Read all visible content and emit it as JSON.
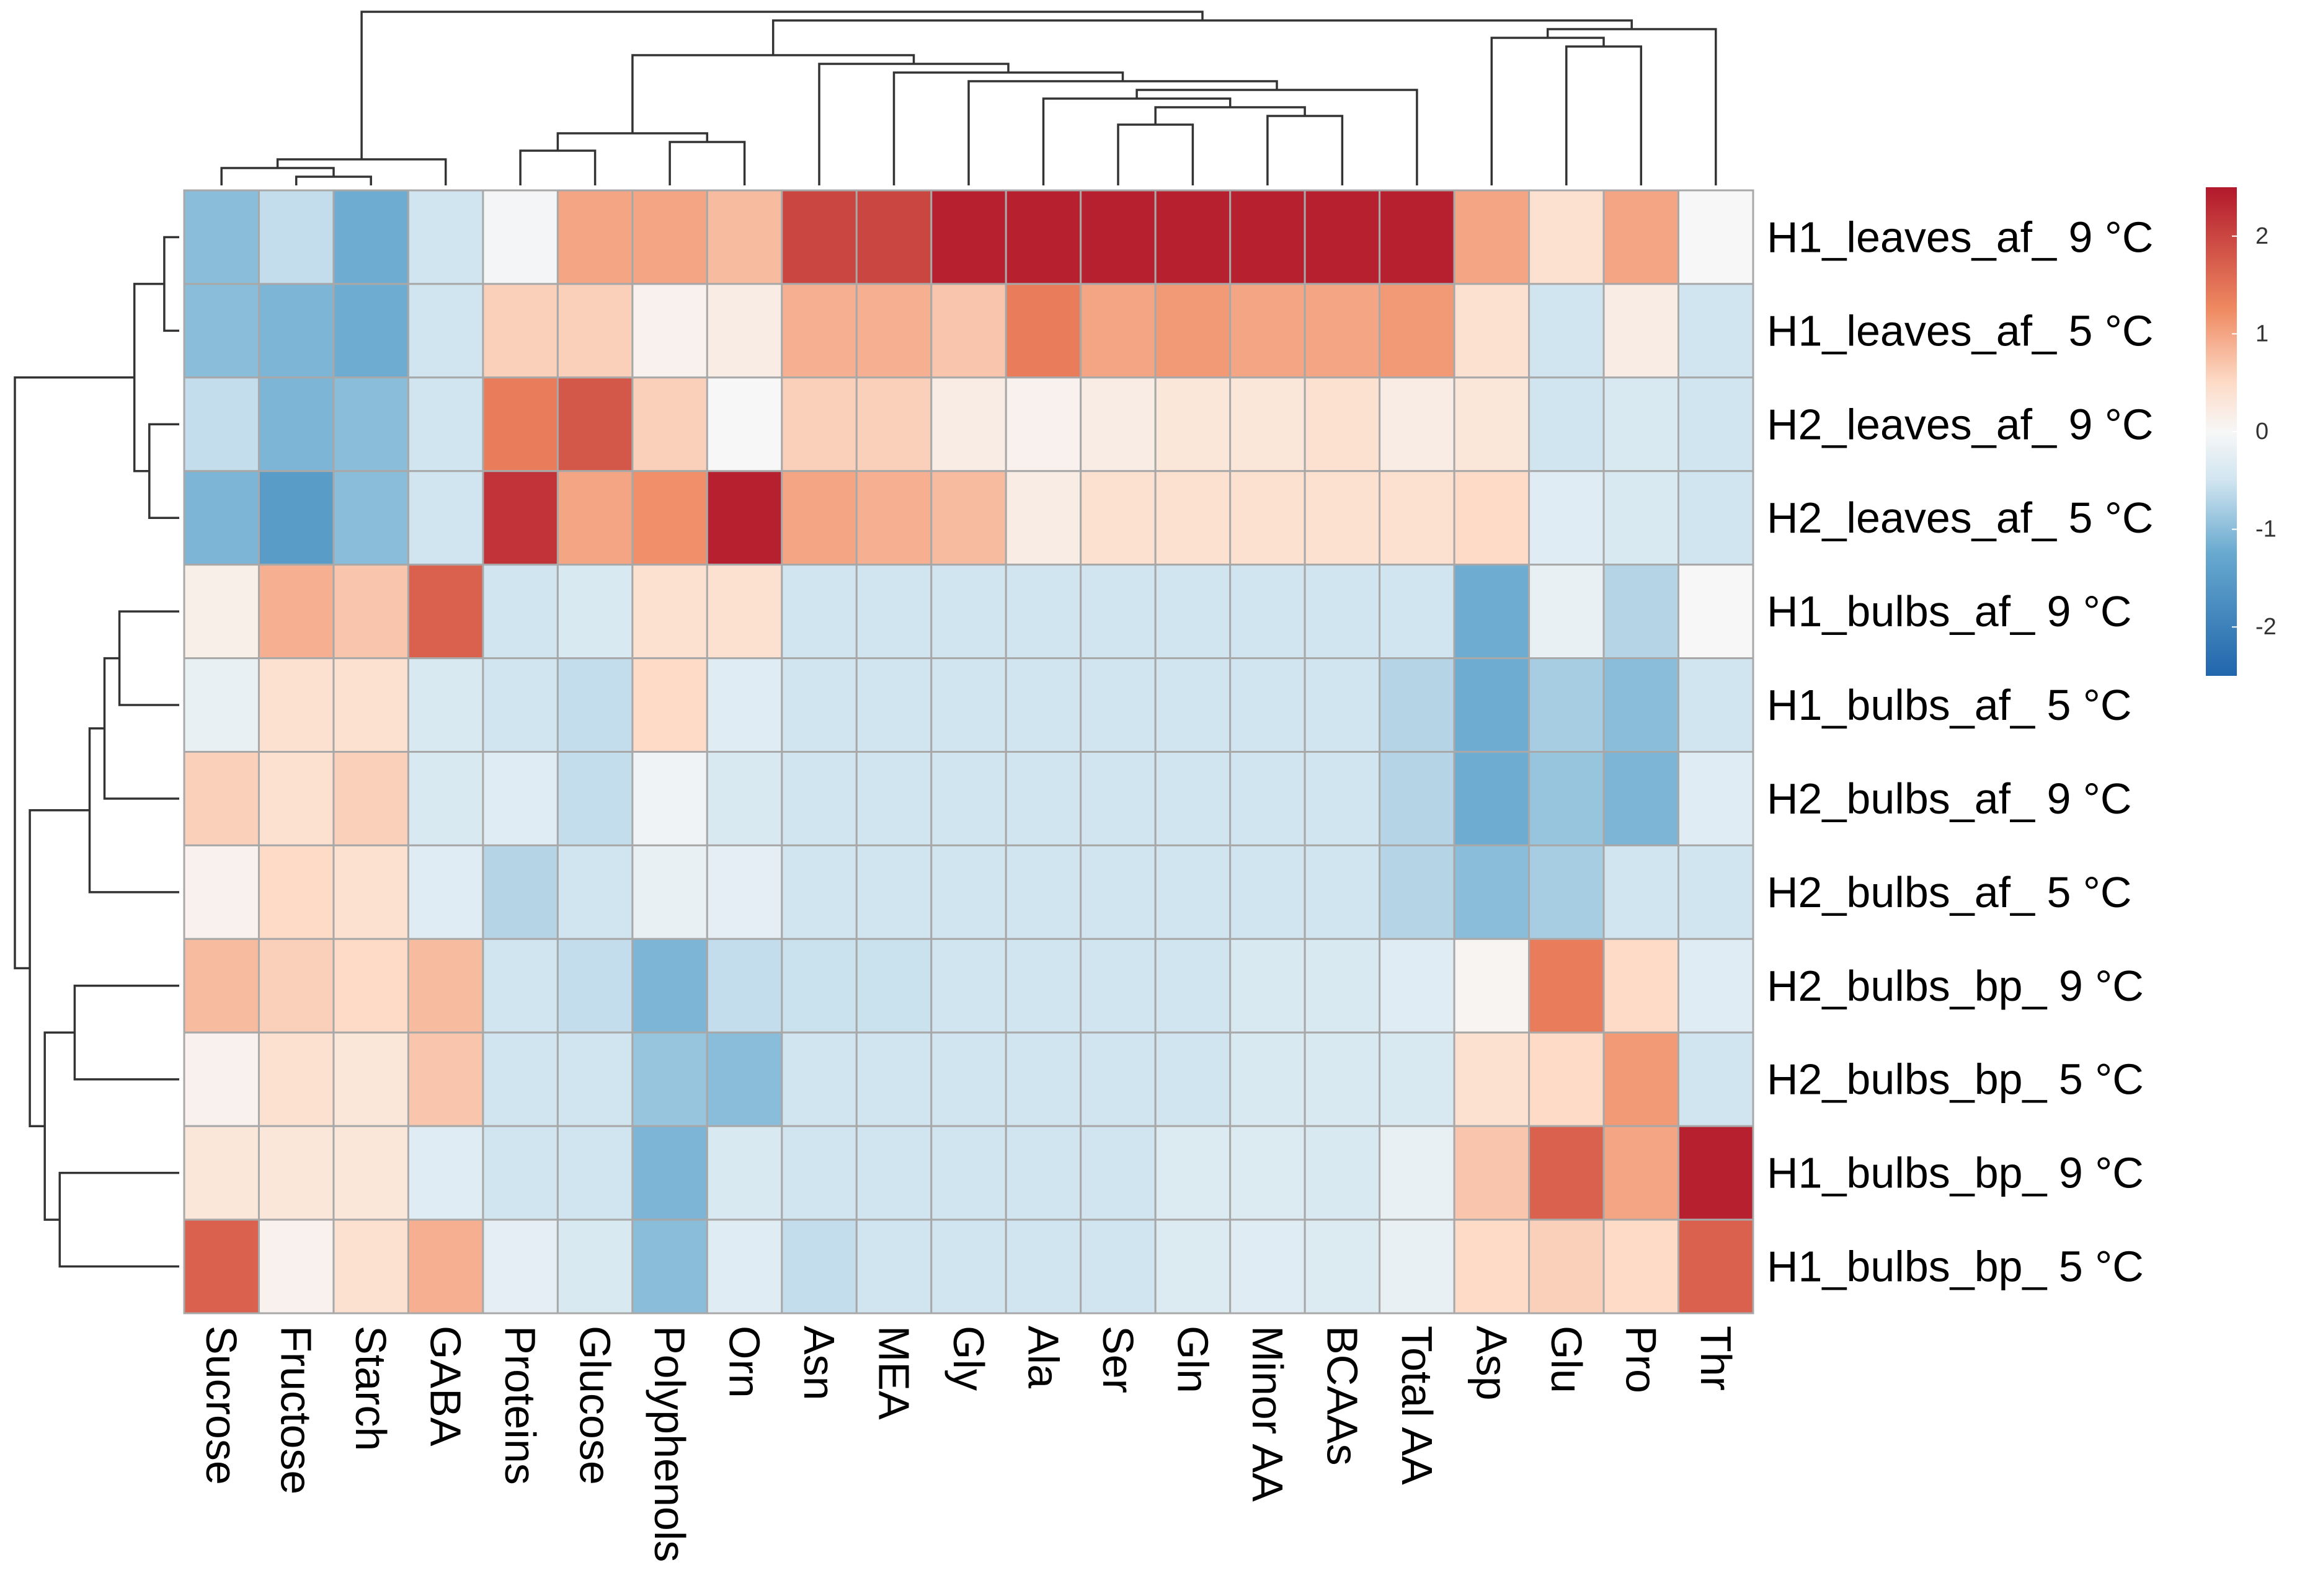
{
  "chart_data": {
    "type": "heatmap",
    "title": "",
    "rows": [
      "H1_leaves_af_ 9 °C",
      "H1_leaves_af_ 5 °C",
      "H2_leaves_af_ 9 °C",
      "H2_leaves_af_ 5 °C",
      "H1_bulbs_af_ 9 °C",
      "H1_bulbs_af_ 5 °C",
      "H2_bulbs_af_ 9 °C",
      "H2_bulbs_af_ 5 °C",
      "H2_bulbs_bp_ 9 °C",
      "H2_bulbs_bp_ 5 °C",
      "H1_bulbs_bp_ 9 °C",
      "H1_bulbs_bp_ 5 °C"
    ],
    "columns": [
      "Sucrose",
      "Fructose",
      "Starch",
      "GABA",
      "Proteins",
      "Glucose",
      "Polyphenols",
      "Orn",
      "Asn",
      "MEA",
      "Gly",
      "Ala",
      "Ser",
      "Gln",
      "Minor AA",
      "BCAAs",
      "Total AA",
      "Asp",
      "Glu",
      "Pro",
      "Thr"
    ],
    "values": [
      [
        -1.0,
        -0.6,
        -1.2,
        -0.5,
        -0.05,
        1.0,
        1.0,
        0.8,
        2.0,
        2.0,
        2.4,
        2.4,
        2.4,
        2.4,
        2.4,
        2.4,
        2.4,
        1.0,
        0.4,
        1.0,
        0.0
      ],
      [
        -1.0,
        -1.1,
        -1.2,
        -0.5,
        0.6,
        0.6,
        0.1,
        0.2,
        0.9,
        0.9,
        0.7,
        1.4,
        1.0,
        1.1,
        1.0,
        1.0,
        1.1,
        0.4,
        -0.5,
        0.2,
        -0.5
      ],
      [
        -0.6,
        -1.1,
        -1.0,
        -0.5,
        1.4,
        1.8,
        0.6,
        0.0,
        0.6,
        0.6,
        0.2,
        0.1,
        0.2,
        0.3,
        0.3,
        0.4,
        0.2,
        0.3,
        -0.5,
        -0.4,
        -0.5
      ],
      [
        -1.1,
        -1.5,
        -1.0,
        -0.5,
        2.2,
        1.0,
        1.2,
        2.4,
        1.0,
        0.9,
        0.8,
        0.2,
        0.4,
        0.4,
        0.4,
        0.4,
        0.4,
        0.5,
        -0.3,
        -0.4,
        -0.5
      ],
      [
        0.15,
        0.9,
        0.7,
        1.7,
        -0.5,
        -0.4,
        0.4,
        0.4,
        -0.5,
        -0.5,
        -0.5,
        -0.5,
        -0.5,
        -0.5,
        -0.5,
        -0.5,
        -0.5,
        -1.2,
        -0.2,
        -0.7,
        0.0
      ],
      [
        -0.2,
        0.4,
        0.4,
        -0.4,
        -0.5,
        -0.6,
        0.5,
        -0.3,
        -0.5,
        -0.5,
        -0.5,
        -0.5,
        -0.5,
        -0.5,
        -0.5,
        -0.5,
        -0.7,
        -1.2,
        -0.8,
        -1.0,
        -0.5
      ],
      [
        0.6,
        0.4,
        0.6,
        -0.4,
        -0.3,
        -0.6,
        -0.1,
        -0.4,
        -0.5,
        -0.5,
        -0.5,
        -0.5,
        -0.5,
        -0.5,
        -0.5,
        -0.5,
        -0.7,
        -1.2,
        -0.9,
        -1.1,
        -0.3
      ],
      [
        0.1,
        0.5,
        0.4,
        -0.3,
        -0.7,
        -0.5,
        -0.2,
        -0.25,
        -0.5,
        -0.5,
        -0.5,
        -0.5,
        -0.5,
        -0.5,
        -0.5,
        -0.5,
        -0.7,
        -1.0,
        -0.8,
        -0.5,
        -0.5
      ],
      [
        0.8,
        0.6,
        0.5,
        0.8,
        -0.5,
        -0.6,
        -1.1,
        -0.6,
        -0.55,
        -0.55,
        -0.5,
        -0.5,
        -0.5,
        -0.5,
        -0.4,
        -0.4,
        -0.3,
        0.05,
        1.4,
        0.5,
        -0.3
      ],
      [
        0.1,
        0.4,
        0.3,
        0.7,
        -0.5,
        -0.5,
        -0.9,
        -1.0,
        -0.5,
        -0.5,
        -0.5,
        -0.5,
        -0.5,
        -0.5,
        -0.4,
        -0.4,
        -0.4,
        0.4,
        0.5,
        1.1,
        -0.5
      ],
      [
        0.3,
        0.3,
        0.3,
        -0.3,
        -0.5,
        -0.5,
        -1.1,
        -0.4,
        -0.5,
        -0.5,
        -0.5,
        -0.5,
        -0.5,
        -0.35,
        -0.35,
        -0.4,
        -0.2,
        0.7,
        1.7,
        1.0,
        2.4
      ],
      [
        1.7,
        0.1,
        0.4,
        0.9,
        -0.25,
        -0.4,
        -1.0,
        -0.3,
        -0.6,
        -0.5,
        -0.5,
        -0.5,
        -0.5,
        -0.35,
        -0.3,
        -0.35,
        -0.2,
        0.5,
        0.6,
        0.5,
        1.7
      ]
    ],
    "color_scale": {
      "min": -2.5,
      "max": 2.5,
      "stops": [
        {
          "value": -2.5,
          "color": "#2166ac"
        },
        {
          "value": -1.25,
          "color": "#67a9cf"
        },
        {
          "value": -0.5,
          "color": "#d1e5f0"
        },
        {
          "value": 0,
          "color": "#f7f7f7"
        },
        {
          "value": 0.5,
          "color": "#fddbc7"
        },
        {
          "value": 1.25,
          "color": "#ef8a62"
        },
        {
          "value": 2.5,
          "color": "#b2182b"
        }
      ]
    },
    "legend_ticks": [
      "2",
      "1",
      "0",
      "-1",
      "-2"
    ],
    "legend_tick_values": [
      2,
      1,
      0,
      -1,
      -2
    ],
    "legend_position": "right",
    "cell_border_color": "#a8a8a8",
    "row_dendrogram": {
      "side": "left",
      "merges": [
        [
          0,
          1
        ],
        [
          2,
          3
        ],
        [
          -1,
          -2
        ],
        [
          4,
          5
        ],
        [
          -4,
          6
        ],
        [
          -5,
          7
        ],
        [
          8,
          9
        ],
        [
          10,
          11
        ],
        [
          -7,
          -8
        ],
        [
          -6,
          -9
        ],
        [
          -3,
          -10
        ]
      ]
    },
    "column_dendrogram": {
      "side": "top",
      "merges": [
        [
          1,
          2
        ],
        [
          0,
          -1
        ],
        [
          -2,
          3
        ],
        [
          4,
          5
        ],
        [
          6,
          7
        ],
        [
          -4,
          -5
        ],
        [
          12,
          13
        ],
        [
          14,
          15
        ],
        [
          -7,
          -8
        ],
        [
          11,
          -9
        ],
        [
          16,
          -10
        ],
        [
          10,
          -11
        ],
        [
          9,
          -12
        ],
        [
          8,
          -13
        ],
        [
          -6,
          -14
        ],
        [
          18,
          19
        ],
        [
          17,
          -16
        ],
        [
          -17,
          20
        ],
        [
          -15,
          -18
        ],
        [
          -3,
          -19
        ]
      ]
    }
  }
}
